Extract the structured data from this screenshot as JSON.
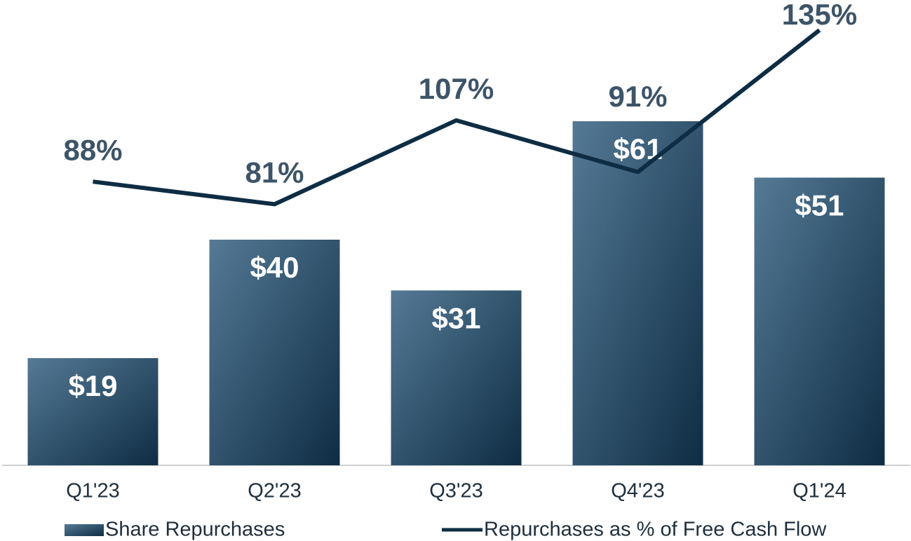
{
  "chart_data": {
    "type": "combo",
    "categories": [
      "Q1'23",
      "Q2'23",
      "Q3'23",
      "Q4'23",
      "Q1'24"
    ],
    "series": [
      {
        "name": "Share Repurchases",
        "type": "bar",
        "color": "#0e2d44",
        "values": [
          19,
          40,
          31,
          61,
          51
        ],
        "value_labels": [
          "$19",
          "$40",
          "$31",
          "$61",
          "$51"
        ]
      },
      {
        "name": "Repurchases as % of Free Cash Flow",
        "type": "line",
        "axis": "y2",
        "color": "#0e2d44",
        "values": [
          88,
          81,
          107,
          91,
          135
        ],
        "value_labels": [
          "88%",
          "81%",
          "107%",
          "91%",
          "135%"
        ]
      }
    ],
    "ylim": [
      0,
      80
    ],
    "y2lim": [
      0,
      140
    ],
    "legend": "bottom"
  }
}
